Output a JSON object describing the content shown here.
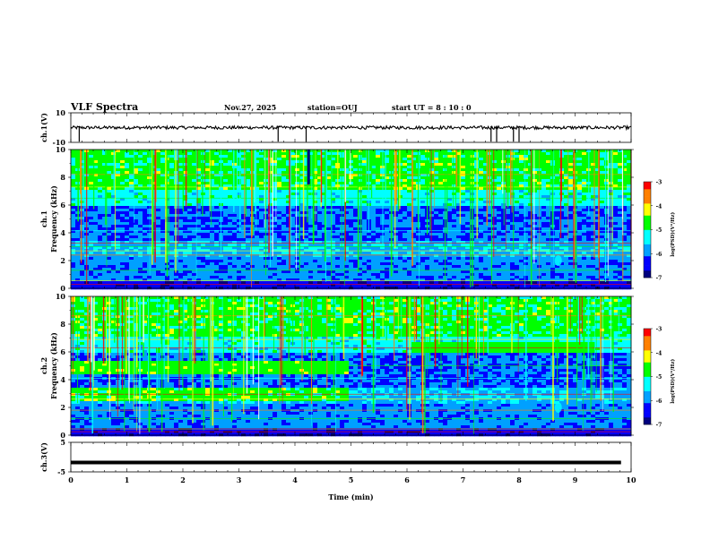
{
  "header": {
    "title": "VLF Spectra",
    "date": "Nov.27, 2025",
    "station": "station=OUJ",
    "start_ut": "start  UT =   8 : 10 : 0"
  },
  "colors": {
    "colormap": [
      "#00007f",
      "#0000ff",
      "#00a0ff",
      "#00ffff",
      "#00ff00",
      "#ffff00",
      "#ff8000",
      "#ff0000",
      "#ffffff"
    ],
    "trace": "#000000"
  },
  "chart_data": [
    {
      "type": "line",
      "name": "ch1-waveform",
      "ylabel": "ch.1(V)",
      "ylim": [
        -10,
        10
      ],
      "yticks": [
        "10",
        "-10"
      ],
      "xlim": [
        0,
        10
      ],
      "spikes_min": [
        0.15,
        3.7,
        4.2,
        7.5,
        7.6,
        7.9,
        8.0
      ],
      "baseline_v": 0
    },
    {
      "type": "heatmap",
      "name": "ch1-spectrogram",
      "ylabel": "ch.1\nFrequency (kHz)",
      "ylim": [
        0,
        10
      ],
      "yticks": [
        "0",
        "2",
        "4",
        "6",
        "8",
        "10"
      ],
      "xlim": [
        0,
        10
      ],
      "colorbar": {
        "label": "log(PSD)(V²/Hz)",
        "ticks": [
          "-3",
          "-4",
          "-5",
          "-6",
          "-7"
        ],
        "range": [
          -7,
          -3
        ]
      }
    },
    {
      "type": "heatmap",
      "name": "ch2-spectrogram",
      "ylabel": "ch.2\nFrequency (kHz)",
      "ylim": [
        0,
        10
      ],
      "yticks": [
        "0",
        "2",
        "4",
        "6",
        "8",
        "10"
      ],
      "xlim": [
        0,
        10
      ],
      "colorbar": {
        "label": "log(PSD)(V²/Hz)",
        "ticks": [
          "-3",
          "-4",
          "-5",
          "-6",
          "-7"
        ],
        "range": [
          -7,
          -3
        ]
      }
    },
    {
      "type": "line",
      "name": "ch3-waveform",
      "ylabel": "ch.3(V)",
      "ylim": [
        -5,
        5
      ],
      "yticks": [
        "5",
        "-5"
      ],
      "xlim": [
        0,
        10
      ],
      "baseline_v": -1.8
    }
  ],
  "xaxis": {
    "label": "Time (min)",
    "ticks": [
      "0",
      "1",
      "2",
      "3",
      "4",
      "5",
      "6",
      "7",
      "8",
      "9",
      "10"
    ]
  }
}
